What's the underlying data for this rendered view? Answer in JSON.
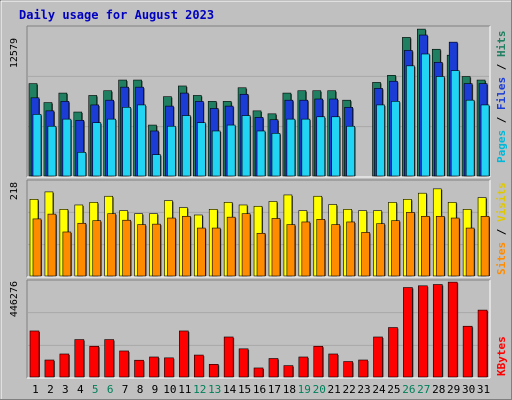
{
  "chart_data": [
    {
      "type": "bar",
      "title": "Daily usage for August 2023",
      "categories": [
        "1",
        "2",
        "3",
        "4",
        "5",
        "6",
        "7",
        "8",
        "9",
        "10",
        "11",
        "12",
        "13",
        "14",
        "15",
        "16",
        "17",
        "18",
        "19",
        "20",
        "21",
        "22",
        "23",
        "24",
        "25",
        "26",
        "27",
        "28",
        "29",
        "30",
        "31"
      ],
      "weekend_days": [
        "5",
        "6",
        "12",
        "13",
        "19",
        "20",
        "26",
        "27"
      ],
      "ymax_label": "12579",
      "ylim": [
        0,
        12579
      ],
      "series": [
        {
          "name": "Hits",
          "color": "#1f7f60",
          "values": [
            7800,
            6200,
            7000,
            5400,
            6800,
            7200,
            8100,
            8100,
            4300,
            6700,
            7600,
            6800,
            6300,
            6300,
            7450,
            5500,
            5250,
            7000,
            7200,
            7200,
            7200,
            6400,
            0,
            7900,
            8500,
            11700,
            12400,
            10700,
            10200,
            8400,
            8100
          ]
        },
        {
          "name": "Files",
          "color": "#1c3cd6",
          "values": [
            6600,
            5500,
            6300,
            4700,
            6000,
            6400,
            7500,
            7500,
            3800,
            5900,
            7000,
            6300,
            5700,
            5900,
            6900,
            4950,
            4750,
            6400,
            6400,
            6500,
            6500,
            5800,
            0,
            7400,
            8000,
            10600,
            11900,
            9600,
            11300,
            7800,
            7800
          ]
        },
        {
          "name": "Pages",
          "color": "#22d4f4",
          "values": [
            5200,
            4200,
            4800,
            2000,
            4500,
            4800,
            5800,
            6000,
            1800,
            4200,
            5100,
            4500,
            3800,
            4300,
            5100,
            3800,
            3600,
            4800,
            4800,
            5000,
            5000,
            4200,
            0,
            6000,
            6300,
            9300,
            10300,
            8400,
            8900,
            6400,
            6000
          ]
        }
      ]
    },
    {
      "type": "bar",
      "ymax_label": "218",
      "ylim": [
        0,
        218
      ],
      "series": [
        {
          "name": "Visits",
          "color": "#ffff00",
          "values": [
            176,
            193,
            153,
            163,
            169,
            183,
            150,
            143,
            143,
            173,
            157,
            140,
            153,
            169,
            163,
            160,
            171,
            186,
            150,
            183,
            164,
            153,
            150,
            150,
            169,
            176,
            190,
            200,
            169,
            153,
            180
          ]
        },
        {
          "name": "Sites",
          "color": "#ff8c00",
          "values": [
            131,
            142,
            101,
            121,
            127,
            143,
            128,
            118,
            119,
            133,
            137,
            110,
            110,
            135,
            143,
            98,
            132,
            118,
            124,
            130,
            118,
            124,
            100,
            120,
            127,
            146,
            137,
            137,
            133,
            110,
            137
          ]
        }
      ]
    },
    {
      "type": "bar",
      "ymax_label": "446276",
      "ylim": [
        0,
        446276
      ],
      "series": [
        {
          "name": "KBytes",
          "color": "#ff0000",
          "values": [
            214000,
            79000,
            107000,
            174000,
            143000,
            174000,
            121000,
            78000,
            93000,
            89000,
            214000,
            102000,
            59000,
            186000,
            131000,
            42000,
            86000,
            53000,
            93000,
            143000,
            107000,
            72000,
            79000,
            186000,
            230000,
            416000,
            424000,
            430000,
            441000,
            236000,
            311000
          ]
        }
      ]
    }
  ]
}
